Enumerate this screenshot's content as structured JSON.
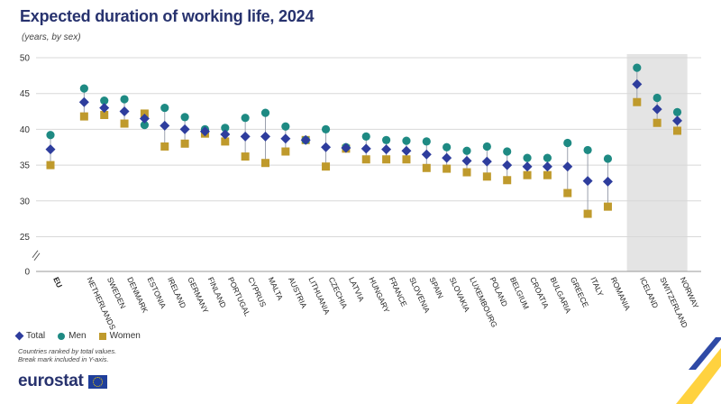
{
  "title": "Expected duration of working life, 2024",
  "subtitle": "(years, by sex)",
  "legend": {
    "total": "Total",
    "men": "Men",
    "women": "Women"
  },
  "notes": {
    "line1": "Countries ranked by total values.",
    "line2": "Break mark included in Y-axis."
  },
  "brand": "eurostat",
  "colors": {
    "total": "#2e3d9d",
    "men": "#1e8a83",
    "women": "#bf9a2c",
    "shade": "#e4e4e4",
    "grid": "#d8d8d8"
  },
  "chart_data": {
    "type": "scatter",
    "title": "Expected duration of working life, 2024",
    "subtitle": "(years, by sex)",
    "ylim": [
      0,
      50
    ],
    "yticks": [
      0,
      25,
      30,
      35,
      40,
      45,
      50
    ],
    "y_axis_break": true,
    "grid": true,
    "legend_position": "bottom-left",
    "categories": [
      "EU",
      "NETHERLANDS",
      "SWEDEN",
      "DENMARK",
      "ESTONIA",
      "IRELAND",
      "GERMANY",
      "FINLAND",
      "PORTUGAL",
      "CYPRUS",
      "MALTA",
      "AUSTRIA",
      "LITHUANIA",
      "CZECHIA",
      "LATVIA",
      "HUNGARY",
      "FRANCE",
      "SLOVENIA",
      "SPAIN",
      "SLOVAKIA",
      "LUXEMBOURG",
      "POLAND",
      "BELGIUM",
      "CROATIA",
      "BULGARIA",
      "GREECE",
      "ITALY",
      "ROMANIA",
      "ICELAND",
      "SWITZERLAND",
      "NORWAY"
    ],
    "shaded_categories": [
      "ICELAND",
      "SWITZERLAND",
      "NORWAY"
    ],
    "series": [
      {
        "name": "Total",
        "marker": "diamond",
        "values": [
          37.2,
          43.8,
          43.0,
          42.5,
          41.5,
          40.5,
          40.0,
          39.7,
          39.3,
          39.0,
          39.0,
          38.7,
          38.5,
          37.5,
          37.4,
          37.3,
          37.2,
          37.0,
          36.5,
          36.0,
          35.6,
          35.5,
          35.0,
          34.8,
          34.8,
          34.8,
          32.8,
          32.7,
          46.3,
          42.8,
          41.2
        ]
      },
      {
        "name": "Men",
        "marker": "circle",
        "values": [
          39.2,
          45.7,
          44.0,
          44.2,
          40.6,
          43.0,
          41.7,
          40.0,
          40.2,
          41.6,
          42.3,
          40.4,
          38.5,
          40.0,
          37.5,
          39.0,
          38.5,
          38.4,
          38.3,
          37.5,
          37.0,
          37.6,
          36.9,
          36.0,
          36.0,
          38.1,
          37.1,
          35.9,
          48.6,
          44.4,
          42.4
        ]
      },
      {
        "name": "Women",
        "marker": "square",
        "values": [
          35.0,
          41.8,
          42.0,
          40.8,
          42.2,
          37.6,
          38.0,
          39.4,
          38.3,
          36.2,
          35.3,
          36.9,
          38.5,
          34.8,
          37.3,
          35.8,
          35.8,
          35.8,
          34.6,
          34.5,
          34.0,
          33.4,
          32.9,
          33.6,
          33.6,
          31.1,
          28.2,
          29.2,
          43.8,
          40.9,
          39.8
        ]
      }
    ]
  }
}
